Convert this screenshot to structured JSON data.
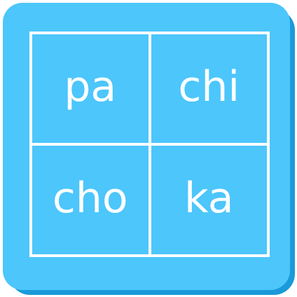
{
  "syllable_grid": {
    "cells": [
      {
        "label": "pa"
      },
      {
        "label": "chi"
      },
      {
        "label": "cho"
      },
      {
        "label": "ka"
      }
    ]
  },
  "colors": {
    "tile": "#4cc6fb",
    "tile_shadow": "#1a9ad9",
    "lines_and_text": "#ffffff"
  }
}
